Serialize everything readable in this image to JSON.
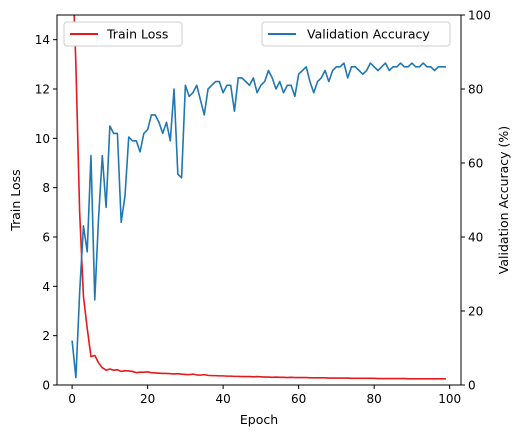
{
  "chart_data": {
    "type": "line",
    "xlabel": "Epoch",
    "ylabel_left": "Train Loss",
    "ylabel_right": "Validation Accuracy (%)",
    "xlim": [
      -4,
      103
    ],
    "ylim_left": [
      0,
      15
    ],
    "ylim_right": [
      0,
      100
    ],
    "x_ticks": [
      0,
      20,
      40,
      60,
      80,
      100
    ],
    "y_ticks_left": [
      0,
      2,
      4,
      6,
      8,
      10,
      12,
      14
    ],
    "y_ticks_right": [
      0,
      20,
      40,
      60,
      80,
      100
    ],
    "grid": false,
    "legend_left": {
      "placement": "top-left",
      "label": "Train Loss"
    },
    "legend_right": {
      "placement": "top-right",
      "label": "Validation Accuracy"
    },
    "series": [
      {
        "name": "Train Loss",
        "axis": "left",
        "color": "#e41a1c",
        "x": [
          0,
          1,
          2,
          3,
          4,
          5,
          6,
          7,
          8,
          9,
          10,
          11,
          12,
          13,
          14,
          15,
          16,
          17,
          18,
          19,
          20,
          21,
          22,
          23,
          24,
          25,
          26,
          27,
          28,
          29,
          30,
          31,
          32,
          33,
          34,
          35,
          36,
          37,
          38,
          39,
          40,
          41,
          42,
          43,
          44,
          45,
          46,
          47,
          48,
          49,
          50,
          51,
          52,
          53,
          54,
          55,
          56,
          57,
          58,
          59,
          60,
          61,
          62,
          63,
          64,
          65,
          66,
          67,
          68,
          69,
          70,
          71,
          72,
          73,
          74,
          75,
          76,
          77,
          78,
          79,
          80,
          81,
          82,
          83,
          84,
          85,
          86,
          87,
          88,
          89,
          90,
          91,
          92,
          93,
          94,
          95,
          96,
          97,
          98,
          99
        ],
        "values": [
          17.5,
          13.0,
          7.0,
          3.6,
          2.3,
          1.15,
          1.2,
          0.9,
          0.7,
          0.6,
          0.65,
          0.6,
          0.62,
          0.55,
          0.58,
          0.57,
          0.55,
          0.5,
          0.52,
          0.52,
          0.53,
          0.5,
          0.49,
          0.48,
          0.47,
          0.47,
          0.46,
          0.45,
          0.46,
          0.44,
          0.43,
          0.42,
          0.44,
          0.41,
          0.4,
          0.42,
          0.39,
          0.38,
          0.38,
          0.37,
          0.37,
          0.36,
          0.36,
          0.35,
          0.35,
          0.34,
          0.34,
          0.34,
          0.33,
          0.34,
          0.33,
          0.32,
          0.32,
          0.31,
          0.32,
          0.31,
          0.31,
          0.3,
          0.31,
          0.3,
          0.3,
          0.3,
          0.3,
          0.29,
          0.29,
          0.29,
          0.29,
          0.29,
          0.28,
          0.28,
          0.28,
          0.28,
          0.28,
          0.28,
          0.27,
          0.27,
          0.27,
          0.27,
          0.27,
          0.27,
          0.27,
          0.26,
          0.26,
          0.26,
          0.26,
          0.26,
          0.26,
          0.26,
          0.26,
          0.25,
          0.25,
          0.25,
          0.25,
          0.25,
          0.25,
          0.25,
          0.25,
          0.25,
          0.25,
          0.25
        ]
      },
      {
        "name": "Validation Accuracy",
        "axis": "right",
        "color": "#1f77b4",
        "x": [
          0,
          1,
          2,
          3,
          4,
          5,
          6,
          7,
          8,
          9,
          10,
          11,
          12,
          13,
          14,
          15,
          16,
          17,
          18,
          19,
          20,
          21,
          22,
          23,
          24,
          25,
          26,
          27,
          28,
          29,
          30,
          31,
          32,
          33,
          34,
          35,
          36,
          37,
          38,
          39,
          40,
          41,
          42,
          43,
          44,
          45,
          46,
          47,
          48,
          49,
          50,
          51,
          52,
          53,
          54,
          55,
          56,
          57,
          58,
          59,
          60,
          61,
          62,
          63,
          64,
          65,
          66,
          67,
          68,
          69,
          70,
          71,
          72,
          73,
          74,
          75,
          76,
          77,
          78,
          79,
          80,
          81,
          82,
          83,
          84,
          85,
          86,
          87,
          88,
          89,
          90,
          91,
          92,
          93,
          94,
          95,
          96,
          97,
          98,
          99
        ],
        "values": [
          12,
          2,
          25,
          43,
          36,
          62,
          23,
          45,
          62,
          48,
          70,
          68,
          68,
          44,
          51,
          67,
          66,
          66,
          63,
          68,
          69,
          73,
          73,
          71,
          68,
          71,
          66,
          80,
          57,
          56,
          81,
          78,
          79,
          81,
          77,
          73,
          80,
          81,
          82,
          82,
          79,
          81,
          81,
          74,
          83,
          83,
          82,
          81,
          83,
          79,
          81,
          82,
          85,
          83,
          80,
          82,
          79,
          81,
          81,
          78,
          84,
          85,
          86,
          82,
          79,
          82,
          83,
          85,
          82,
          85,
          86,
          86,
          87,
          83,
          86,
          86,
          85,
          84,
          85,
          87,
          86,
          85,
          86,
          87,
          85,
          86,
          86,
          87,
          86,
          86,
          87,
          86,
          86,
          87,
          86,
          86,
          85,
          86,
          86,
          86
        ]
      }
    ]
  }
}
